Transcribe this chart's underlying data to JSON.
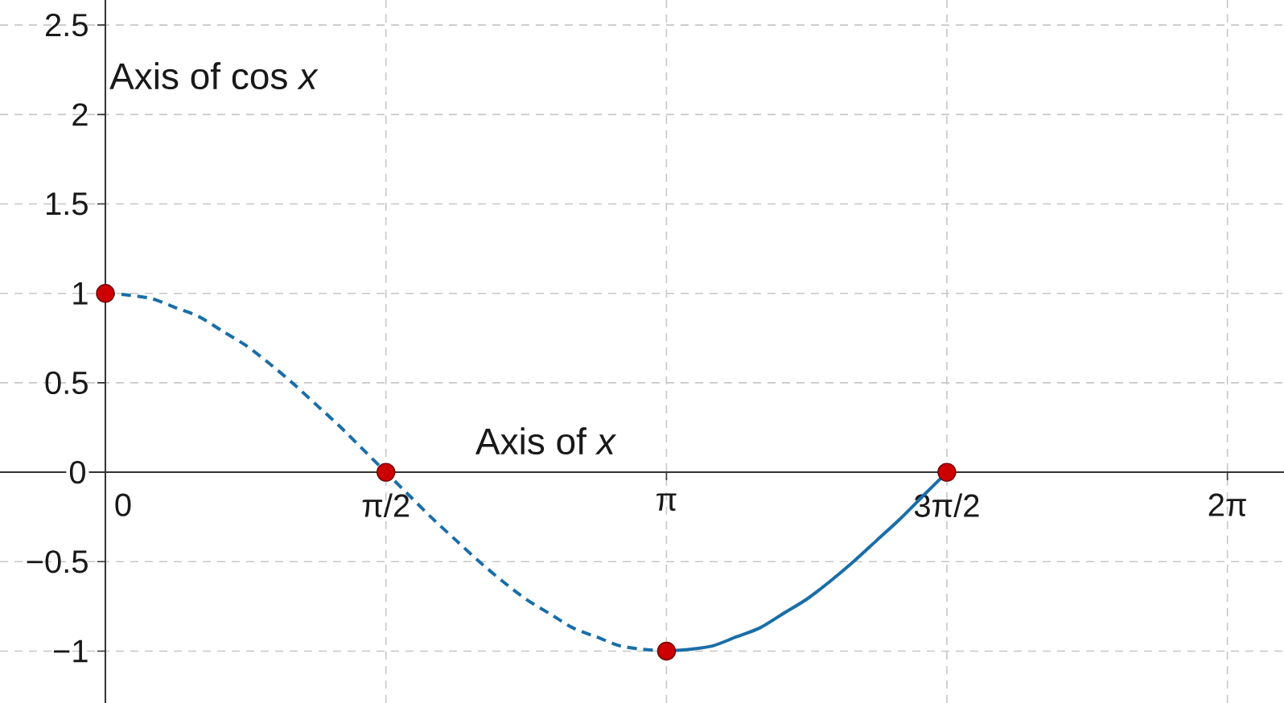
{
  "chart_data": {
    "type": "line",
    "xlabel": "Axis of *x*",
    "ylabel": "Axis of cos *x*",
    "xlim": [
      -0.59,
      6.6
    ],
    "ylim": [
      -1.29,
      2.64
    ],
    "xticks": [
      0,
      {
        "value": 1.571,
        "label": "π/2"
      },
      {
        "value": 3.142,
        "label": "π"
      },
      {
        "value": 4.712,
        "label": "3π/2"
      },
      {
        "value": 6.283,
        "label": "2π"
      }
    ],
    "yticks": [
      {
        "value": -1,
        "label": "−1"
      },
      {
        "value": -0.5,
        "label": "−0.5"
      },
      0,
      0.5,
      1,
      1.5,
      2,
      2.5
    ],
    "grid": true,
    "series": [
      {
        "color": "#1a6ea8",
        "line_style": "dashed",
        "marker": "none",
        "x": [
          0,
          0.131,
          0.262,
          0.393,
          0.524,
          0.654,
          0.785,
          0.916,
          1.047,
          1.178,
          1.309,
          1.44,
          1.571,
          1.702,
          1.833,
          1.963,
          2.094,
          2.225,
          2.356,
          2.487,
          2.618,
          2.749,
          2.88,
          3.011,
          3.142
        ],
        "values": [
          1,
          0.99,
          0.97,
          0.92,
          0.87,
          0.79,
          0.71,
          0.61,
          0.5,
          0.38,
          0.26,
          0.13,
          0,
          -0.13,
          -0.26,
          -0.38,
          -0.5,
          -0.61,
          -0.71,
          -0.79,
          -0.87,
          -0.92,
          -0.97,
          -0.99,
          -1
        ]
      },
      {
        "color": "#1a6ea8",
        "line_style": "solid",
        "marker": "none",
        "x": [
          3.142,
          3.272,
          3.403,
          3.534,
          3.665,
          3.796,
          3.927,
          4.058,
          4.189,
          4.32,
          4.451,
          4.581,
          4.712
        ],
        "values": [
          -1,
          -0.99,
          -0.97,
          -0.92,
          -0.87,
          -0.79,
          -0.71,
          -0.61,
          -0.5,
          -0.38,
          -0.26,
          -0.13,
          0
        ]
      },
      {
        "type": "scatter",
        "color": "#cc0000",
        "marker": "circle",
        "x": [
          0,
          1.571,
          3.142,
          4.712
        ],
        "values": [
          1,
          0,
          -1,
          0
        ]
      }
    ]
  }
}
